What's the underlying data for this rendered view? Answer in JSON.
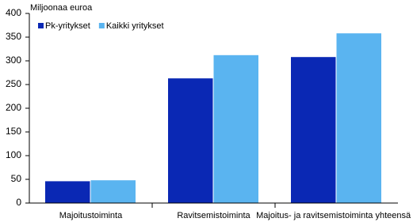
{
  "chart_data": {
    "type": "bar",
    "ylabel": "Miljoonaa euroa",
    "categories": [
      "Majoitustoiminta",
      "Ravitsemistoiminta",
      "Majoitus- ja ravitsemistoiminta yhteensä"
    ],
    "series": [
      {
        "name": "Pk-yritykset",
        "color": "#0a28b4",
        "values": [
          46,
          263,
          308
        ]
      },
      {
        "name": "Kaikki yritykset",
        "color": "#5ab4f0",
        "values": [
          48,
          312,
          358
        ]
      }
    ],
    "ylim": [
      0,
      400
    ],
    "yticks": [
      0,
      50,
      100,
      150,
      200,
      250,
      300,
      350,
      400
    ],
    "legend": "top-left"
  }
}
